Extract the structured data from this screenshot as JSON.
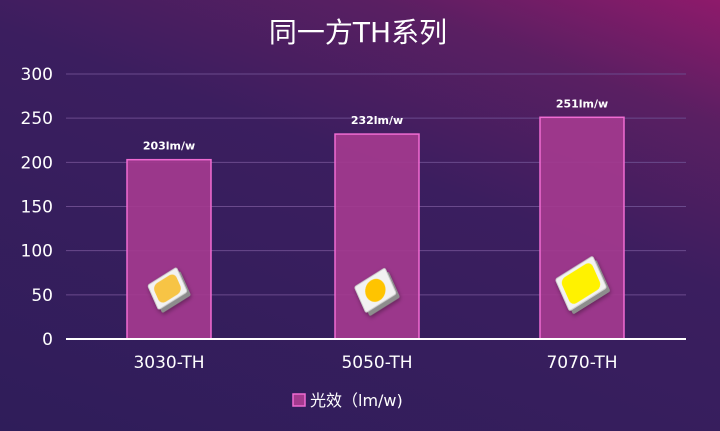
{
  "chart_data": {
    "type": "bar",
    "title": "同一方TH系列",
    "categories": [
      "3030-TH",
      "5050-TH",
      "7070-TH"
    ],
    "series": [
      {
        "name": "光效（lm/w)",
        "values": [
          203,
          232,
          251
        ],
        "data_labels": [
          "203lm/w",
          "232lm/w",
          "251lm/w"
        ]
      }
    ],
    "yticks": [
      "0",
      "50",
      "100",
      "150",
      "200",
      "250",
      "300"
    ],
    "ylim": [
      0,
      300
    ],
    "grid": true,
    "legend": "bottom-center",
    "colors": {
      "bar_fill": "#a43a8f",
      "bar_stroke": "#f06bd2",
      "grid": "#6a4a8c",
      "axis": "#ffffff",
      "text": "#ffffff"
    },
    "chip_icons": [
      "led-chip-3030-icon",
      "led-chip-5050-icon",
      "led-chip-7070-icon"
    ]
  }
}
